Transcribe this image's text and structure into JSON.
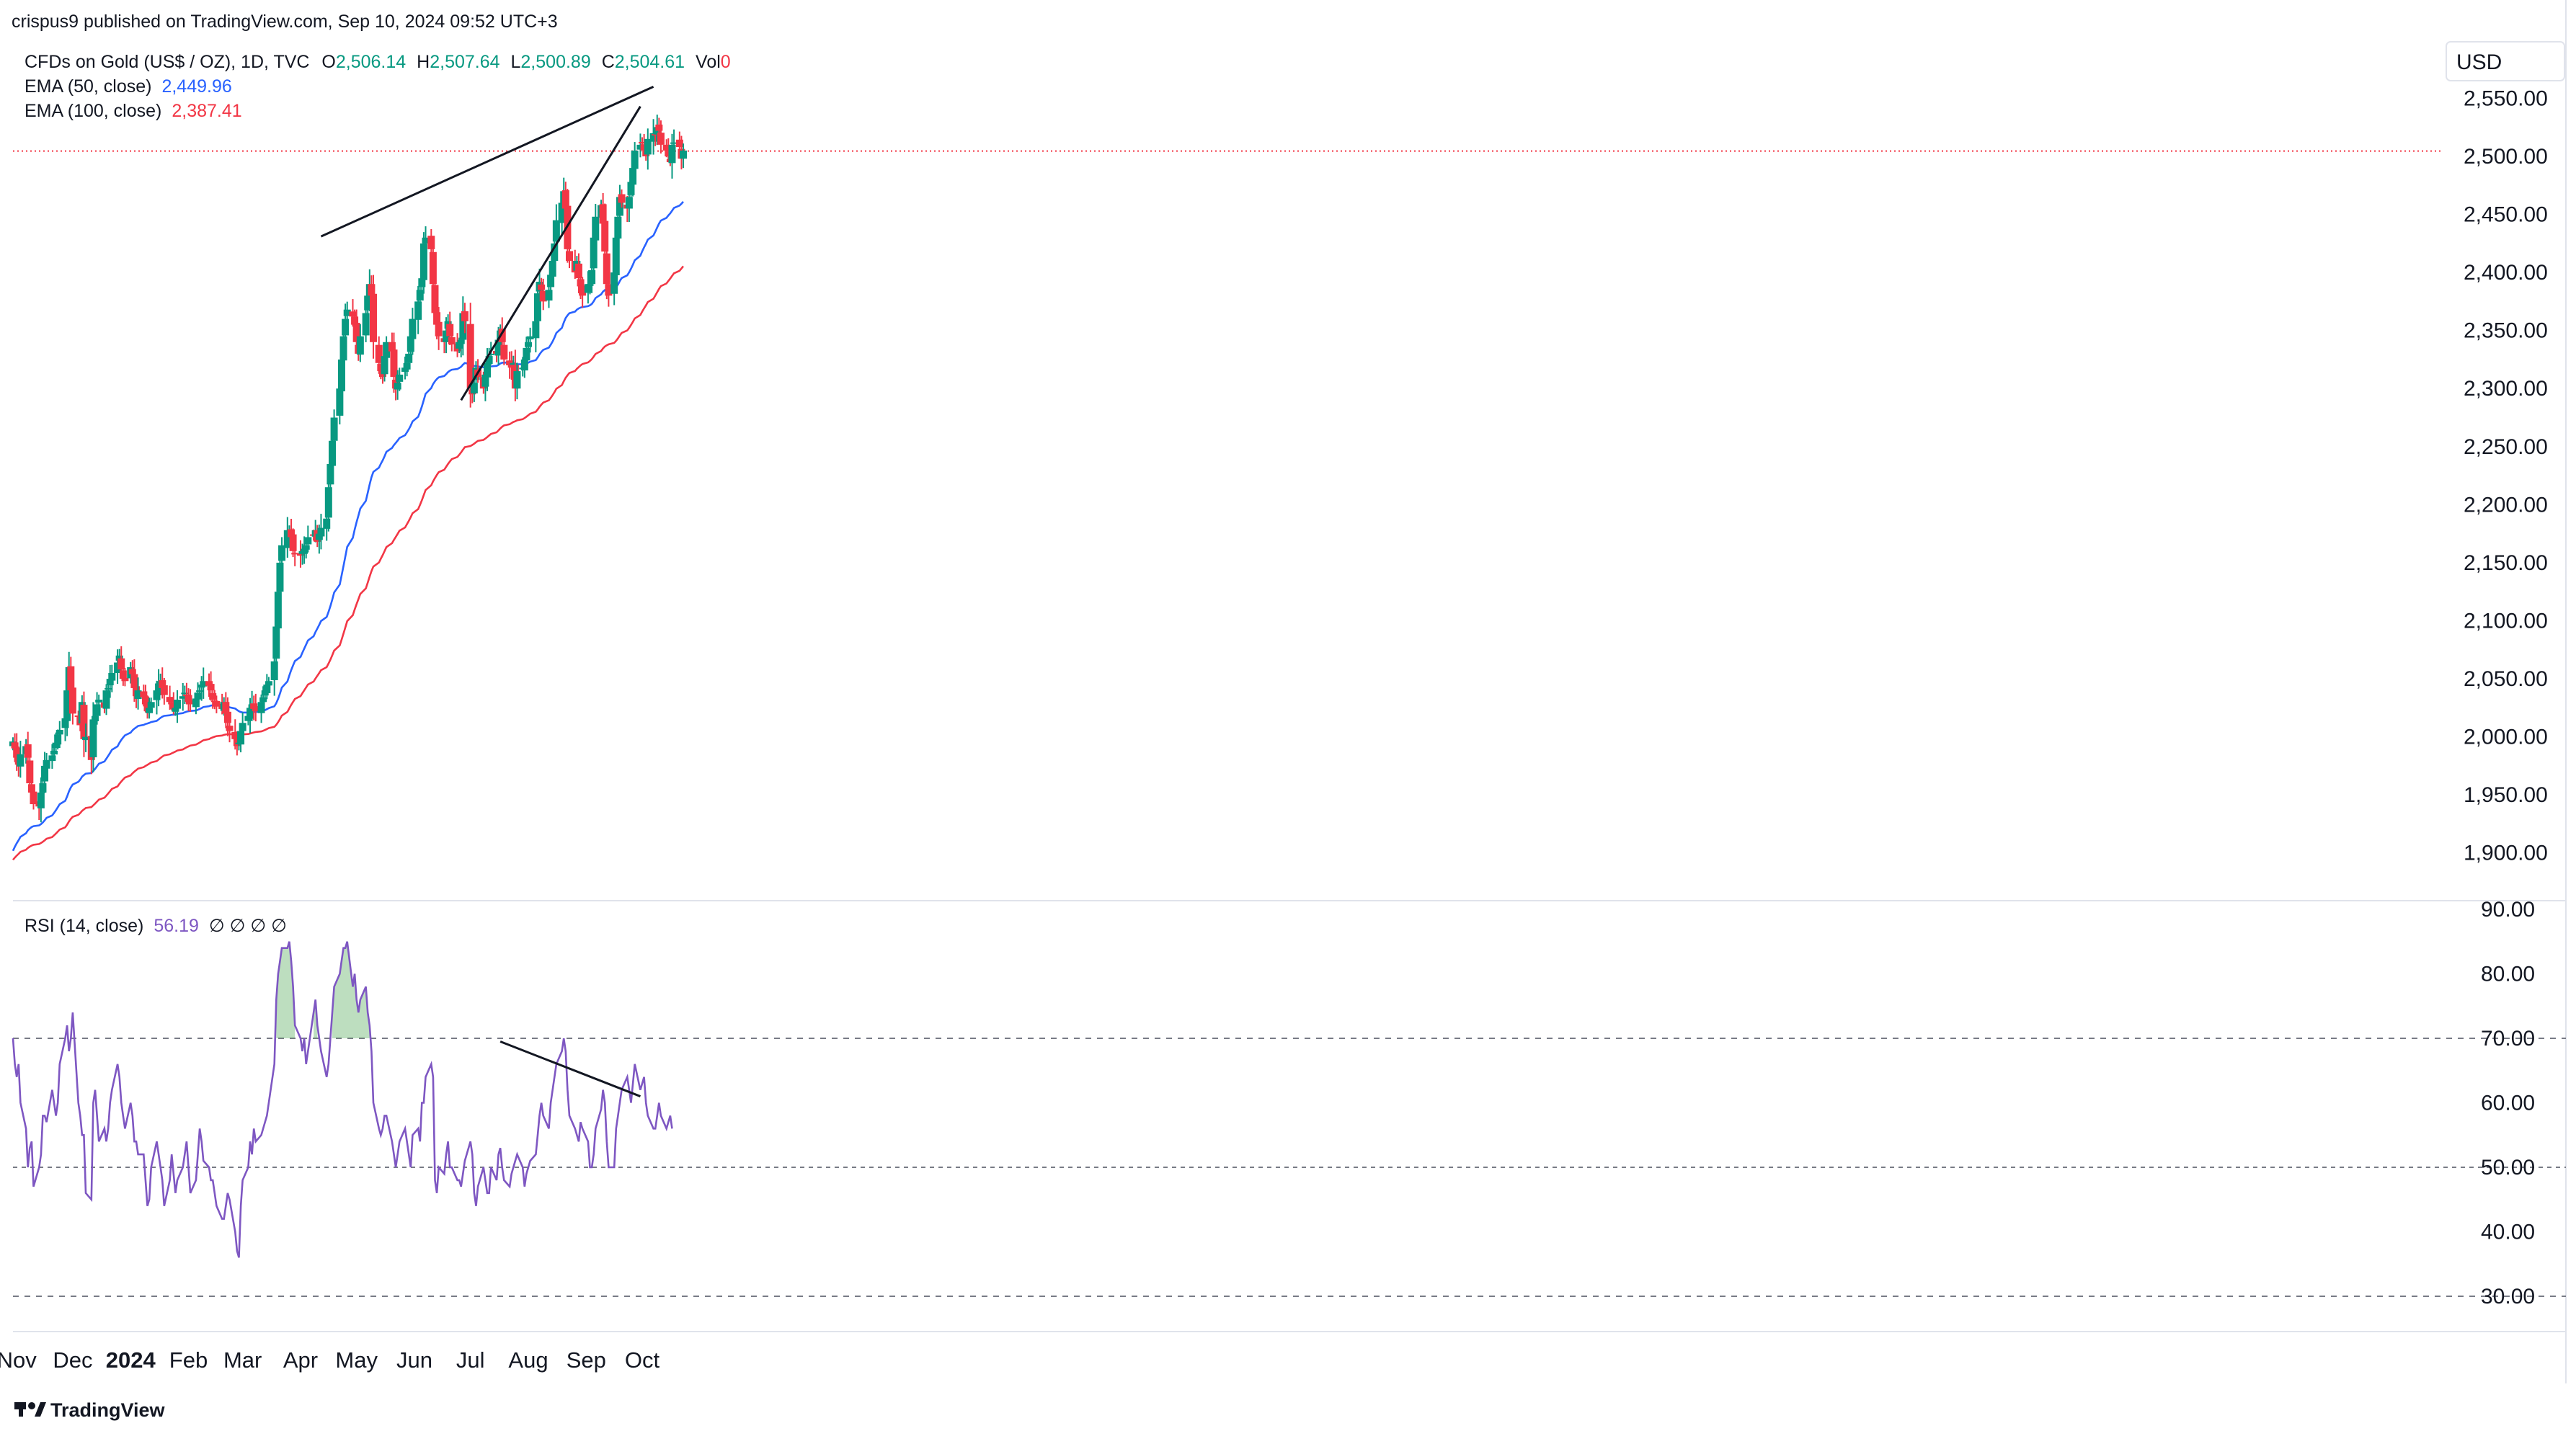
{
  "header": {
    "published_line": "crispus9 published on TradingView.com, Sep 10, 2024 09:52 UTC+3",
    "symbol": "CFDs on Gold (US$ / OZ), 1D, TVC",
    "o_label": "O",
    "o_value": "2,506.14",
    "h_label": "H",
    "h_value": "2,507.64",
    "l_label": "L",
    "l_value": "2,500.89",
    "c_label": "C",
    "c_value": "2,504.61",
    "vol_label": "Vol",
    "vol_value": "0",
    "ema50_label": "EMA (50, close)",
    "ema50_value": "2,449.96",
    "ema100_label": "EMA (100, close)",
    "ema100_value": "2,387.41",
    "rsi_label": "RSI (14, close)",
    "rsi_value": "56.19",
    "rsi_extras": "∅ ∅ ∅ ∅",
    "currency": "USD"
  },
  "footer": {
    "brand": "TradingView"
  },
  "colors": {
    "up": "#089981",
    "down": "#f23645",
    "ema50": "#2962ff",
    "ema100": "#f23645",
    "rsi": "#7e57c2",
    "fill_ob": "#43a047",
    "trendline": "#131722",
    "grid_dash": "#787b86",
    "price_line": "#f23645"
  },
  "chart_data": [
    {
      "type": "candlestick",
      "title": "CFDs on Gold (US$ / OZ), 1D, TVC",
      "x_ticks": [
        "Nov",
        "Dec",
        "2024",
        "Feb",
        "Mar",
        "Apr",
        "May",
        "Jun",
        "Jul",
        "Aug",
        "Sep",
        "Oct"
      ],
      "y_ticks": [
        "1,900.00",
        "1,950.00",
        "2,000.00",
        "2,050.00",
        "2,100.00",
        "2,150.00",
        "2,200.00",
        "2,250.00",
        "2,300.00",
        "2,350.00",
        "2,400.00",
        "2,450.00",
        "2,500.00",
        "2,550.00"
      ],
      "ylim": [
        1880,
        2585
      ],
      "date_range": [
        "2023-10-30",
        "2024-09-10"
      ],
      "closes": [
        1996,
        1990,
        1982,
        1976,
        1985,
        1992,
        1982,
        1960,
        1952,
        1942,
        1940,
        1952,
        1960,
        1975,
        1980,
        1984,
        1988,
        1995,
        2002,
        2006,
        2016,
        2040,
        2060,
        2040,
        2020,
        2018,
        2010,
        2030,
        1998,
        2000,
        1980,
        2015,
        2018,
        2028,
        2032,
        2025,
        2040,
        2042,
        2050,
        2055,
        2064,
        2070,
        2058,
        2050,
        2048,
        2060,
        2054,
        2042,
        2035,
        2040,
        2034,
        2028,
        2022,
        2025,
        2030,
        2040,
        2046,
        2048,
        2042,
        2036,
        2030,
        2028,
        2024,
        2025,
        2032,
        2035,
        2038,
        2036,
        2030,
        2028,
        2033,
        2038,
        2040,
        2045,
        2048,
        2044,
        2040,
        2032,
        2030,
        2026,
        2024,
        2030,
        2020,
        2012,
        2005,
        1998,
        1992,
        1995,
        2005,
        2012,
        2018,
        2025,
        2028,
        2024,
        2022,
        2030,
        2034,
        2040,
        2045,
        2048,
        2065,
        2095,
        2125,
        2150,
        2165,
        2178,
        2178,
        2172,
        2160,
        2158,
        2156,
        2160,
        2162,
        2165,
        2172,
        2174,
        2178,
        2168,
        2175,
        2180,
        2188,
        2215,
        2235,
        2255,
        2275,
        2300,
        2325,
        2345,
        2360,
        2368,
        2362,
        2355,
        2340,
        2330,
        2345,
        2365,
        2380,
        2390,
        2380,
        2340,
        2322,
        2315,
        2310,
        2328,
        2340,
        2332,
        2310,
        2300,
        2305,
        2312,
        2318,
        2322,
        2330,
        2345,
        2360,
        2375,
        2385,
        2395,
        2425,
        2430,
        2420,
        2390,
        2365,
        2355,
        2345,
        2340,
        2350,
        2358,
        2345,
        2338,
        2332,
        2340,
        2342,
        2365,
        2358,
        2300,
        2295,
        2305,
        2318,
        2310,
        2300,
        2312,
        2322,
        2328,
        2330,
        2330,
        2342,
        2350,
        2340,
        2325,
        2320,
        2318,
        2322,
        2300,
        2315,
        2318,
        2325,
        2335,
        2340,
        2345,
        2358,
        2382,
        2392,
        2385,
        2375,
        2385,
        2398,
        2410,
        2425,
        2445,
        2460,
        2470,
        2455,
        2420,
        2410,
        2400,
        2410,
        2395,
        2388,
        2380,
        2390,
        2390,
        2402,
        2430,
        2448,
        2458,
        2442,
        2418,
        2390,
        2380,
        2400,
        2430,
        2448,
        2465,
        2460,
        2455,
        2465,
        2478,
        2490,
        2505,
        2510,
        2512,
        2505,
        2500,
        2515,
        2520,
        2518,
        2525,
        2522,
        2510,
        2505,
        2500,
        2495,
        2510,
        2512,
        2508,
        2498,
        2505
      ],
      "ema50_last": 2449.96,
      "ema100_last": 2387.41,
      "last_price": 2504.61,
      "annotations": [
        "rising wedge upper trendline from Apr 12 high to Sep",
        "rising wedge lower trendline from late Jun low to Sep"
      ]
    },
    {
      "type": "line",
      "title": "RSI (14, close)",
      "y_ticks": [
        "30.00",
        "40.00",
        "50.00",
        "60.00",
        "70.00",
        "80.00",
        "90.00"
      ],
      "ylim": [
        27,
        91
      ],
      "levels": [
        70,
        50,
        30
      ],
      "rsi": [
        70,
        66,
        64,
        66,
        60,
        56,
        50,
        53,
        54,
        47,
        50,
        52,
        58,
        58,
        57,
        62,
        60,
        58,
        60,
        66,
        70,
        72,
        68,
        70,
        74,
        60,
        58,
        55,
        55,
        46,
        45,
        60,
        62,
        58,
        54,
        56,
        54,
        56,
        60,
        62,
        66,
        64,
        60,
        58,
        56,
        60,
        58,
        54,
        54,
        52,
        52,
        48,
        44,
        45,
        50,
        54,
        52,
        50,
        48,
        44,
        48,
        52,
        49,
        46,
        48,
        50,
        52,
        54,
        50,
        46,
        48,
        52,
        56,
        54,
        51,
        50,
        48,
        48,
        46,
        44,
        42,
        42,
        44,
        46,
        45,
        40,
        37,
        36,
        44,
        48,
        50,
        54,
        52,
        56,
        54,
        55,
        56,
        57,
        58,
        60,
        66,
        76,
        80,
        82,
        84,
        84,
        85,
        82,
        78,
        72,
        70,
        68,
        70,
        66,
        68,
        74,
        76,
        72,
        70,
        68,
        64,
        66,
        70,
        74,
        78,
        80,
        82,
        84,
        84,
        85,
        78,
        80,
        76,
        74,
        76,
        78,
        74,
        72,
        68,
        60,
        56,
        55,
        56,
        58,
        58,
        54,
        52,
        50,
        52,
        54,
        56,
        54,
        52,
        50,
        55,
        56,
        54,
        60,
        60,
        64,
        66,
        64,
        48,
        46,
        50,
        49,
        52,
        54,
        50,
        50,
        48,
        48,
        47,
        49,
        51,
        54,
        52,
        46,
        44,
        47,
        50,
        48,
        46,
        46,
        50,
        48,
        52,
        53,
        50,
        48,
        47,
        49,
        50,
        51,
        52,
        50,
        47,
        49,
        50,
        51,
        52,
        55,
        58,
        60,
        58,
        56,
        60,
        62,
        64,
        66,
        68,
        70,
        68,
        62,
        58,
        56,
        55,
        54,
        57,
        56,
        54,
        50,
        50,
        52,
        56,
        59,
        62,
        60,
        54,
        50,
        50,
        56,
        58,
        60,
        62,
        64,
        62,
        60,
        63,
        66,
        62,
        63,
        64,
        60,
        58,
        56,
        56,
        58,
        60,
        58,
        56,
        57,
        58,
        56
      ]
    }
  ]
}
